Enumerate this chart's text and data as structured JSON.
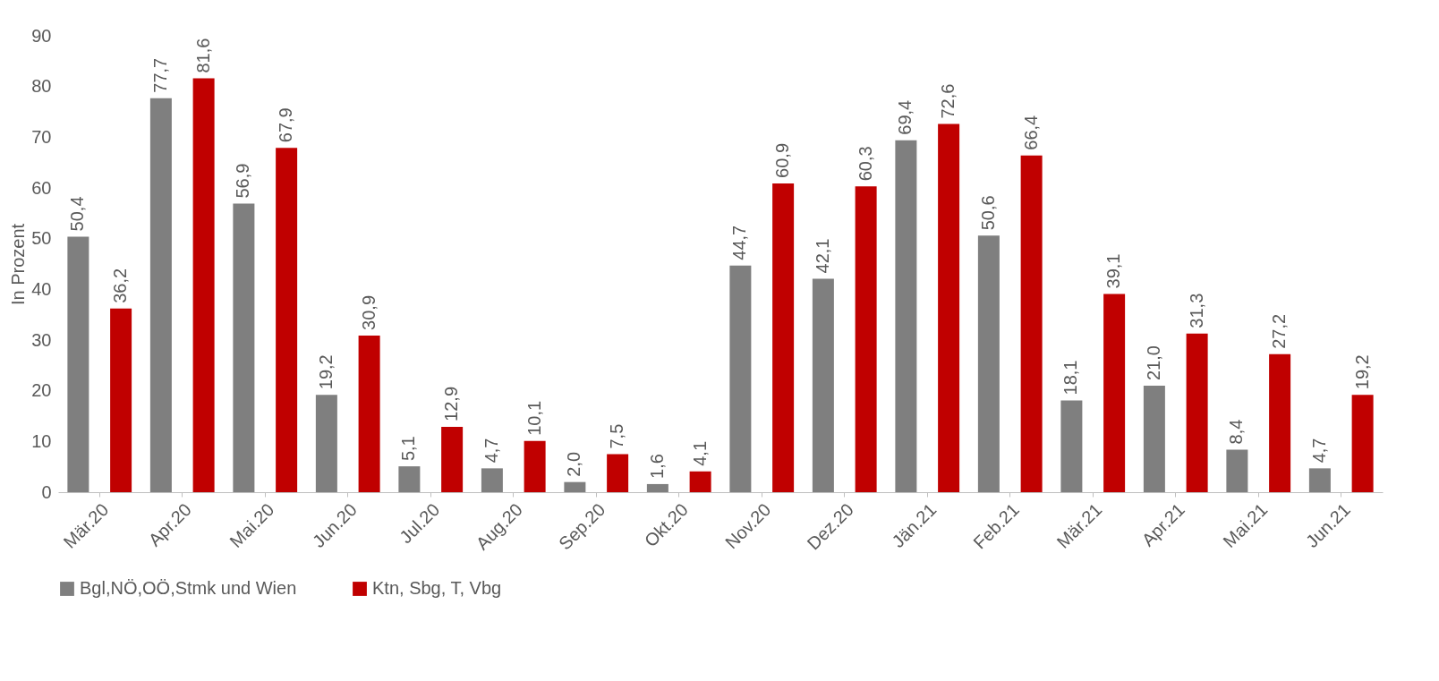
{
  "chart_data": {
    "type": "bar",
    "ylabel": "In Prozent",
    "categories": [
      "Mär.20",
      "Apr.20",
      "Mai.20",
      "Jun.20",
      "Jul.20",
      "Aug.20",
      "Sep.20",
      "Okt.20",
      "Nov.20",
      "Dez.20",
      "Jän.21",
      "Feb.21",
      "Mär.21",
      "Apr.21",
      "Mai.21",
      "Jun.21"
    ],
    "series": [
      {
        "name": "Bgl,NÖ,OÖ,Stmk und Wien",
        "color": "#7f7f7f",
        "values": [
          50.4,
          77.7,
          56.9,
          19.2,
          5.1,
          4.7,
          2.0,
          1.6,
          44.7,
          42.1,
          69.4,
          50.6,
          18.1,
          21.0,
          8.4,
          4.7
        ],
        "value_labels": [
          "50,4",
          "77,7",
          "56,9",
          "19,2",
          "5,1",
          "4,7",
          "2,0",
          "1,6",
          "44,7",
          "42,1",
          "69,4",
          "50,6",
          "18,1",
          "21,0",
          "8,4",
          "4,7"
        ]
      },
      {
        "name": "Ktn, Sbg, T, Vbg",
        "color": "#c00000",
        "values": [
          36.2,
          81.6,
          67.9,
          30.9,
          12.9,
          10.1,
          7.5,
          4.1,
          60.9,
          60.3,
          72.6,
          66.4,
          39.1,
          31.3,
          27.2,
          19.2
        ],
        "value_labels": [
          "36,2",
          "81,6",
          "67,9",
          "30,9",
          "12,9",
          "10,1",
          "7,5",
          "4,1",
          "60,9",
          "60,3",
          "72,6",
          "66,4",
          "39,1",
          "31,3",
          "27,2",
          "19,2"
        ]
      }
    ],
    "ylim": [
      0,
      90
    ],
    "yticks": [
      0,
      10,
      20,
      30,
      40,
      50,
      60,
      70,
      80,
      90
    ],
    "grid": false,
    "legend": "bottom"
  }
}
